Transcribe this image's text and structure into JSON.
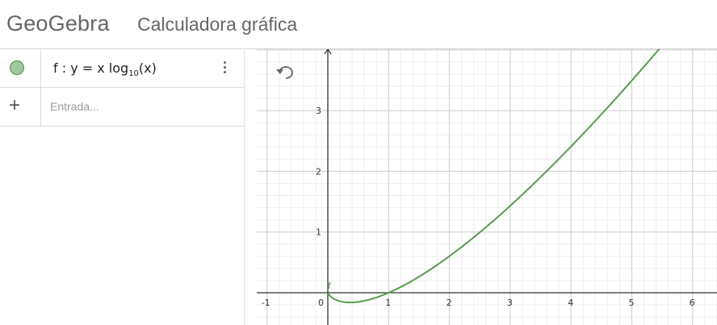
{
  "header": {
    "logo_text": "GeoGebra",
    "title": "Calculadora gráfica"
  },
  "algebra": {
    "items": [
      {
        "formula_prefix": "f : y = x  log",
        "formula_sub": "10",
        "formula_suffix": "(x)",
        "color": "#9fc99a"
      }
    ],
    "input_placeholder": "Entrada..."
  },
  "graph": {
    "function_label": "f",
    "curve_color": "#5a9a52",
    "x_ticks": [
      "-1",
      "0",
      "1",
      "2",
      "3",
      "4",
      "5",
      "6"
    ],
    "y_ticks": [
      "1",
      "2",
      "3"
    ],
    "xlim": [
      -1.2,
      6.4
    ],
    "ylim": [
      -0.55,
      4.0
    ]
  },
  "chart_data": {
    "type": "line",
    "title": "",
    "xlabel": "",
    "ylabel": "",
    "xlim": [
      -1.2,
      6.4
    ],
    "ylim": [
      -0.55,
      4.0
    ],
    "series": [
      {
        "name": "f",
        "x": [
          0.01,
          0.1,
          0.2,
          0.37,
          0.5,
          0.75,
          1,
          1.5,
          2,
          2.5,
          3,
          3.5,
          4,
          4.5,
          5,
          5.43
        ],
        "values": [
          -0.02,
          -0.1,
          -0.14,
          -0.16,
          -0.15,
          -0.09,
          0,
          0.26,
          0.6,
          1.0,
          1.43,
          1.9,
          2.41,
          2.94,
          3.49,
          3.99
        ]
      }
    ],
    "grid": true
  }
}
